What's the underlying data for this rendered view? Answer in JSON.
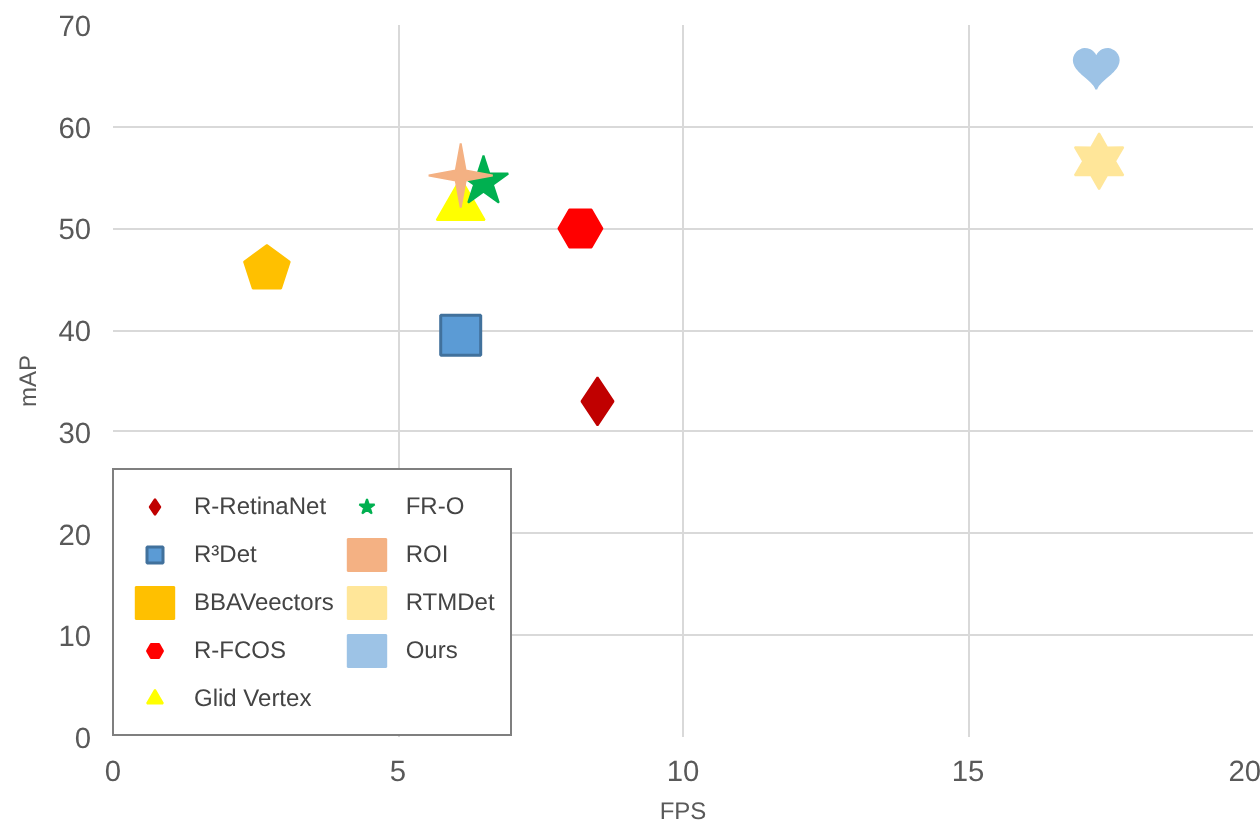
{
  "chart_data": {
    "type": "scatter",
    "xlabel": "FPS",
    "ylabel": "mAP",
    "xlim": [
      0,
      20
    ],
    "xticks": [
      0,
      5,
      10,
      15,
      20
    ],
    "ylim": [
      0,
      70
    ],
    "yticks": [
      0,
      10,
      20,
      30,
      40,
      50,
      60,
      70
    ],
    "grid": true,
    "legend": "bottom left",
    "series": [
      {
        "name": "R-RetinaNet",
        "color": "#c00000",
        "marker": "diamond",
        "x": [
          8.5
        ],
        "values": [
          33
        ]
      },
      {
        "name": "R³Det",
        "color": "#5b9bd5",
        "marker": "square",
        "x": [
          6.1
        ],
        "values": [
          39.5
        ]
      },
      {
        "name": "BBAVeectors",
        "color": "#ffc000",
        "x": [
          2.7
        ],
        "values": [
          46
        ]
      },
      {
        "name": "R-FCOS",
        "color": "#ff0000",
        "x": [
          8.2
        ],
        "values": [
          50
        ]
      },
      {
        "name": "Glid Vertex",
        "color": "#ffff00",
        "marker": "triangle",
        "x": [
          6.1
        ],
        "values": [
          52.2
        ]
      },
      {
        "name": "FR-O",
        "color": "#00b050",
        "marker": "star",
        "x": [
          6.5
        ],
        "values": [
          54.6
        ]
      },
      {
        "name": "ROI",
        "color": "#f4b183",
        "marker": "star",
        "x": [
          6.1
        ],
        "values": [
          55.2
        ]
      },
      {
        "name": "RTMDet",
        "color": "#ffe699",
        "x": [
          17.3
        ],
        "values": [
          56.6
        ]
      },
      {
        "name": "Ours",
        "color": "#9dc3e6",
        "x": [
          17.25
        ],
        "values": [
          66
        ]
      }
    ]
  }
}
